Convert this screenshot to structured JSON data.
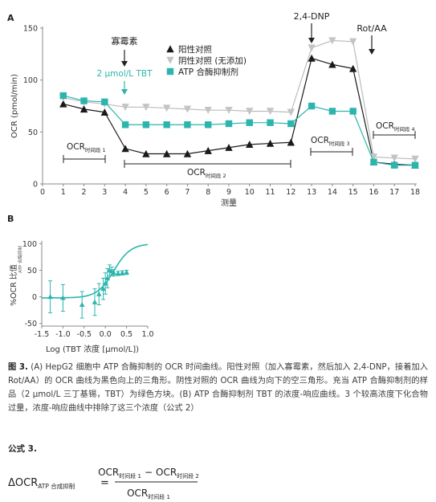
{
  "chart_data": [
    {
      "panel_label": "A",
      "type": "line",
      "xlabel": "测量",
      "ylabel": "OCR (pmol/min)",
      "xlim": [
        0,
        18
      ],
      "ylim": [
        0,
        150
      ],
      "xticks": [
        0,
        1,
        2,
        3,
        4,
        5,
        6,
        7,
        8,
        9,
        10,
        11,
        12,
        13,
        14,
        15,
        16,
        17,
        18
      ],
      "yticks": [
        0,
        50,
        100,
        150
      ],
      "grid": false,
      "legend_position": "top-right",
      "series": [
        {
          "name": "阳性对照",
          "marker": "triangle-up",
          "color": "#1a1a1a",
          "x": [
            1,
            2,
            3,
            4,
            5,
            6,
            7,
            8,
            9,
            10,
            11,
            12,
            13,
            14,
            15,
            16,
            17,
            18
          ],
          "y": [
            77,
            72,
            69,
            34,
            29,
            29,
            29,
            32,
            35,
            38,
            39,
            40,
            121,
            115,
            111,
            21,
            19,
            18
          ]
        },
        {
          "name": "阴性对照 (无添加)",
          "marker": "triangle-down",
          "color": "#c4c4c4",
          "x": [
            1,
            2,
            3,
            4,
            5,
            6,
            7,
            8,
            9,
            10,
            11,
            12,
            13,
            14,
            15,
            16,
            17,
            18
          ],
          "y": [
            83,
            79,
            77,
            74,
            74,
            73,
            72,
            71,
            71,
            70,
            70,
            69,
            131,
            138,
            137,
            26,
            25,
            24
          ]
        },
        {
          "name": "ATP 合酶抑制剂",
          "marker": "square",
          "color": "#2bb5ad",
          "x": [
            1,
            2,
            3,
            4,
            5,
            6,
            7,
            8,
            9,
            10,
            11,
            12,
            13,
            14,
            15,
            16,
            17,
            18
          ],
          "y": [
            85,
            80,
            79,
            57,
            57,
            57,
            57,
            57,
            58,
            59,
            59,
            58,
            75,
            70,
            70,
            21,
            18,
            18
          ]
        }
      ],
      "annotations": {
        "oligomycin": "寡霉素",
        "tbt_dose": "2 μmol/L TBT",
        "dnp": "2,4-DNP",
        "rot_aa": "Rot/AA",
        "period_label": "OCR",
        "period_1_sub": "时间段 1",
        "period_2_sub": "时间段 2",
        "period_3_sub": "时间段 3",
        "period_4_sub": "时间段 4"
      }
    },
    {
      "panel_label": "B",
      "type": "scatter",
      "xlabel": "Log (TBT 浓度 [μmol/L])",
      "ylabel_main": "%OCR 比值",
      "ylabel_sub": "ATP 合酶抑制",
      "xlim": [
        -1.5,
        1.0
      ],
      "ylim": [
        -55,
        105
      ],
      "xticks": [
        -1.5,
        -1.0,
        -0.5,
        0.0,
        0.5,
        1.0
      ],
      "xtick_labels": [
        "-1.5",
        "-1.0",
        "-0.5",
        "0.0",
        "0.5",
        "1.0"
      ],
      "yticks": [
        -50,
        0,
        50,
        100
      ],
      "ytick_labels": [
        "-50",
        "0",
        "50",
        "100"
      ],
      "color": "#2bb5ad",
      "points": [
        {
          "x": -1.3,
          "y": 0,
          "err": 30
        },
        {
          "x": -1.0,
          "y": -2,
          "err": 25
        },
        {
          "x": -0.55,
          "y": -15,
          "err": 25
        },
        {
          "x": -0.25,
          "y": -10,
          "err": 25
        },
        {
          "x": -0.15,
          "y": 5,
          "err": 20
        },
        {
          "x": -0.05,
          "y": 15,
          "err": 20
        },
        {
          "x": 0.0,
          "y": 25,
          "err": 20
        },
        {
          "x": 0.05,
          "y": 35,
          "err": 18
        },
        {
          "x": 0.1,
          "y": 50,
          "err": 10
        },
        {
          "x": 0.15,
          "y": 48,
          "err": 8
        },
        {
          "x": 0.2,
          "y": 45,
          "err": 6
        },
        {
          "x": 0.3,
          "y": 44,
          "err": 4
        },
        {
          "x": 0.4,
          "y": 45,
          "err": 4
        },
        {
          "x": 0.5,
          "y": 46,
          "err": 4
        }
      ],
      "fit": {
        "bottom": -2,
        "top": 100,
        "logEC50": 0.2,
        "hill": 2.2
      }
    }
  ],
  "caption": {
    "figure_number": "图 3.",
    "text": "(A) HepG2 细胞中 ATP 合酶抑制的 OCR 时间曲线。阳性对照（加入寡霉素，然后加入 2,4-DNP，接着加入 Rot/AA）的 OCR 曲线为黑色向上的三角形。阴性对照的 OCR 曲线为向下的空三角形。充当 ATP 合酶抑制剂的样品（2 μmol/L 三丁基锡，TBT）为绿色方块。(B) ATP 合酶抑制剂 TBT 的浓度-响应曲线。3 个较高浓度下化合物过量，浓度-响应曲线中排除了这三个浓度（公式 2）"
  },
  "formula": {
    "title": "公式 3.",
    "lhs_main": "ΔOCR",
    "lhs_sub": "ATP 合成抑制",
    "num_t1_main": "OCR",
    "num_t1_sub": "时间段 1",
    "num_minus": "−",
    "num_t2_main": "OCR",
    "num_t2_sub": "时间段 2",
    "den_main": "OCR",
    "den_sub": "时间段 1"
  }
}
